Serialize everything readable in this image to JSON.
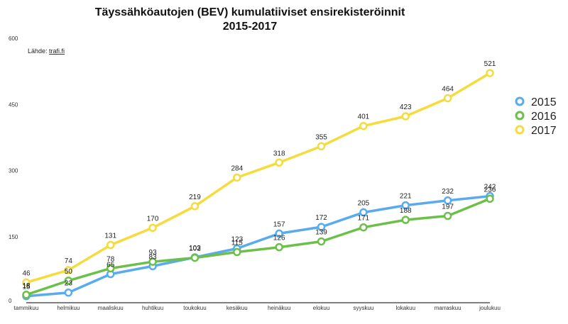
{
  "chart_data": {
    "type": "line",
    "title_line1": "Täyssähköautojen (BEV) kumulatiiviset ensirekisteröinnit",
    "title_line2": "2015-2017",
    "source_label": "Lähde: ",
    "source_link": "trafi.fi",
    "categories": [
      "tammikuu",
      "helmikuu",
      "maaliskuu",
      "huhtikuu",
      "toukokuu",
      "kesäkuu",
      "heinäkuu",
      "elokuu",
      "syyskuu",
      "lokakuu",
      "marraskuu",
      "joulukuu"
    ],
    "ylim": [
      0,
      600
    ],
    "yticks": [
      0,
      150,
      300,
      450,
      600
    ],
    "legend_position": "right",
    "series": [
      {
        "name": "2015",
        "color": "#5aaaee",
        "values": [
          15,
          23,
          65,
          83,
          103,
          123,
          157,
          172,
          205,
          221,
          232,
          242
        ]
      },
      {
        "name": "2016",
        "color": "#6cc04a",
        "values": [
          18,
          50,
          78,
          93,
          102,
          115,
          126,
          139,
          171,
          188,
          197,
          236
        ]
      },
      {
        "name": "2017",
        "color": "#f5dc3c",
        "values": [
          46,
          74,
          131,
          170,
          219,
          284,
          318,
          355,
          401,
          423,
          464,
          521
        ]
      }
    ]
  }
}
